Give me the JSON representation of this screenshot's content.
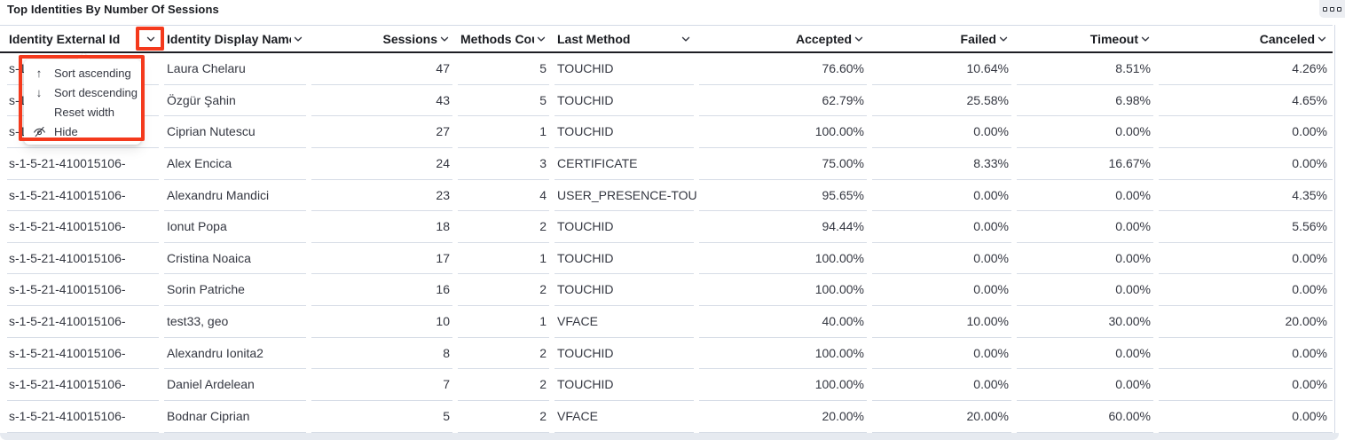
{
  "panel": {
    "title": "Top Identities By Number Of Sessions",
    "options_icon": "boxes-horizontal-icon"
  },
  "colors": {
    "annotation_red": "#f4391c",
    "text": "#343741",
    "header_text": "#1a1c21",
    "row_divider": "#d6dce6",
    "header_border": "#1d1e24",
    "panel_edge": "#e6eaf0"
  },
  "table": {
    "columns": [
      {
        "label": "Identity External Id"
      },
      {
        "label": "Identity Display Name"
      },
      {
        "label": "Sessions"
      },
      {
        "label": "Methods Count"
      },
      {
        "label": "Last Method"
      },
      {
        "label": "Accepted"
      },
      {
        "label": "Failed"
      },
      {
        "label": "Timeout"
      },
      {
        "label": "Canceled"
      }
    ],
    "rows": [
      [
        "s-1-5-21-410015106-",
        "Laura Chelaru",
        "47",
        "5",
        "TOUCHID",
        "76.60%",
        "10.64%",
        "8.51%",
        "4.26%"
      ],
      [
        "s-1-5-21-410015106-",
        "Özgür Şahin",
        "43",
        "5",
        "TOUCHID",
        "62.79%",
        "25.58%",
        "6.98%",
        "4.65%"
      ],
      [
        "s-1-5-21-410015106-",
        "Ciprian Nutescu",
        "27",
        "1",
        "TOUCHID",
        "100.00%",
        "0.00%",
        "0.00%",
        "0.00%"
      ],
      [
        "s-1-5-21-410015106-",
        "Alex Encica",
        "24",
        "3",
        "CERTIFICATE",
        "75.00%",
        "8.33%",
        "16.67%",
        "0.00%"
      ],
      [
        "s-1-5-21-410015106-",
        "Alexandru Mandici",
        "23",
        "4",
        "USER_PRESENCE-TOUC",
        "95.65%",
        "0.00%",
        "0.00%",
        "4.35%"
      ],
      [
        "s-1-5-21-410015106-",
        "Ionut Popa",
        "18",
        "2",
        "TOUCHID",
        "94.44%",
        "0.00%",
        "0.00%",
        "5.56%"
      ],
      [
        "s-1-5-21-410015106-",
        "Cristina Noaica",
        "17",
        "1",
        "TOUCHID",
        "100.00%",
        "0.00%",
        "0.00%",
        "0.00%"
      ],
      [
        "s-1-5-21-410015106-",
        "Sorin Patriche",
        "16",
        "2",
        "TOUCHID",
        "100.00%",
        "0.00%",
        "0.00%",
        "0.00%"
      ],
      [
        "s-1-5-21-410015106-",
        "test33, geo",
        "10",
        "1",
        "VFACE",
        "40.00%",
        "10.00%",
        "30.00%",
        "20.00%"
      ],
      [
        "s-1-5-21-410015106-",
        "Alexandru Ionita2",
        "8",
        "2",
        "TOUCHID",
        "100.00%",
        "0.00%",
        "0.00%",
        "0.00%"
      ],
      [
        "s-1-5-21-410015106-",
        "Daniel Ardelean",
        "7",
        "2",
        "TOUCHID",
        "100.00%",
        "0.00%",
        "0.00%",
        "0.00%"
      ],
      [
        "s-1-5-21-410015106-",
        "Bodnar Ciprian",
        "5",
        "2",
        "VFACE",
        "20.00%",
        "20.00%",
        "60.00%",
        "0.00%"
      ]
    ]
  },
  "column_menu": {
    "attached_column": "Identity External Id",
    "items": [
      {
        "icon": "sort-ascending-icon",
        "label": "Sort ascending"
      },
      {
        "icon": "sort-descending-icon",
        "label": "Sort descending"
      },
      {
        "icon": null,
        "label": "Reset width"
      },
      {
        "icon": "eye-closed-icon",
        "label": "Hide"
      }
    ]
  }
}
